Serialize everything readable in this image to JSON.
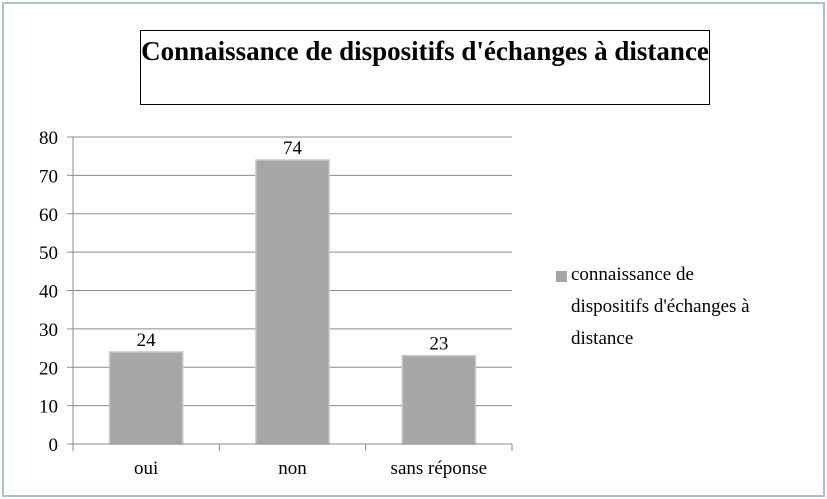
{
  "chart_data": {
    "type": "bar",
    "title": "Connaissance de dispositifs d'échanges à distance",
    "categories": [
      "oui",
      "non",
      "sans réponse"
    ],
    "values": [
      24,
      74,
      23
    ],
    "series_name": "connaissance de dispositifs d'échanges à distance",
    "color": "#a6a6a6",
    "ylim": [
      0,
      80
    ],
    "yticks": [
      0,
      10,
      20,
      30,
      40,
      50,
      60,
      70,
      80
    ],
    "grid": true,
    "legend": "right"
  }
}
